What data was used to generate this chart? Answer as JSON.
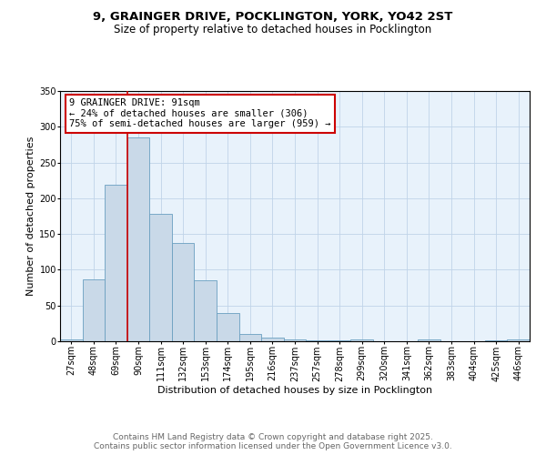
{
  "title_line1": "9, GRAINGER DRIVE, POCKLINGTON, YORK, YO42 2ST",
  "title_line2": "Size of property relative to detached houses in Pocklington",
  "xlabel": "Distribution of detached houses by size in Pocklington",
  "ylabel": "Number of detached properties",
  "bar_labels": [
    "27sqm",
    "48sqm",
    "69sqm",
    "90sqm",
    "111sqm",
    "132sqm",
    "153sqm",
    "174sqm",
    "195sqm",
    "216sqm",
    "237sqm",
    "257sqm",
    "278sqm",
    "299sqm",
    "320sqm",
    "341sqm",
    "362sqm",
    "383sqm",
    "404sqm",
    "425sqm",
    "446sqm"
  ],
  "bar_values": [
    3,
    86,
    219,
    285,
    178,
    138,
    85,
    40,
    10,
    5,
    3,
    1,
    1,
    2,
    0,
    0,
    2,
    0,
    0,
    1,
    2
  ],
  "bar_color": "#c9d9e8",
  "bar_edge_color": "#6a9fc0",
  "grid_color": "#c0d4e8",
  "background_color": "#e8f2fb",
  "annotation_line1": "9 GRAINGER DRIVE: 91sqm",
  "annotation_line2": "← 24% of detached houses are smaller (306)",
  "annotation_line3": "75% of semi-detached houses are larger (959) →",
  "annotation_box_color": "#ffffff",
  "annotation_box_edge_color": "#cc0000",
  "vline_color": "#cc0000",
  "vline_index": 3,
  "ylim": [
    0,
    350
  ],
  "yticks": [
    0,
    50,
    100,
    150,
    200,
    250,
    300,
    350
  ],
  "footer_line1": "Contains HM Land Registry data © Crown copyright and database right 2025.",
  "footer_line2": "Contains public sector information licensed under the Open Government Licence v3.0.",
  "title_fontsize": 9.5,
  "subtitle_fontsize": 8.5,
  "axis_label_fontsize": 8,
  "tick_fontsize": 7,
  "annotation_fontsize": 7.5,
  "footer_fontsize": 6.5
}
